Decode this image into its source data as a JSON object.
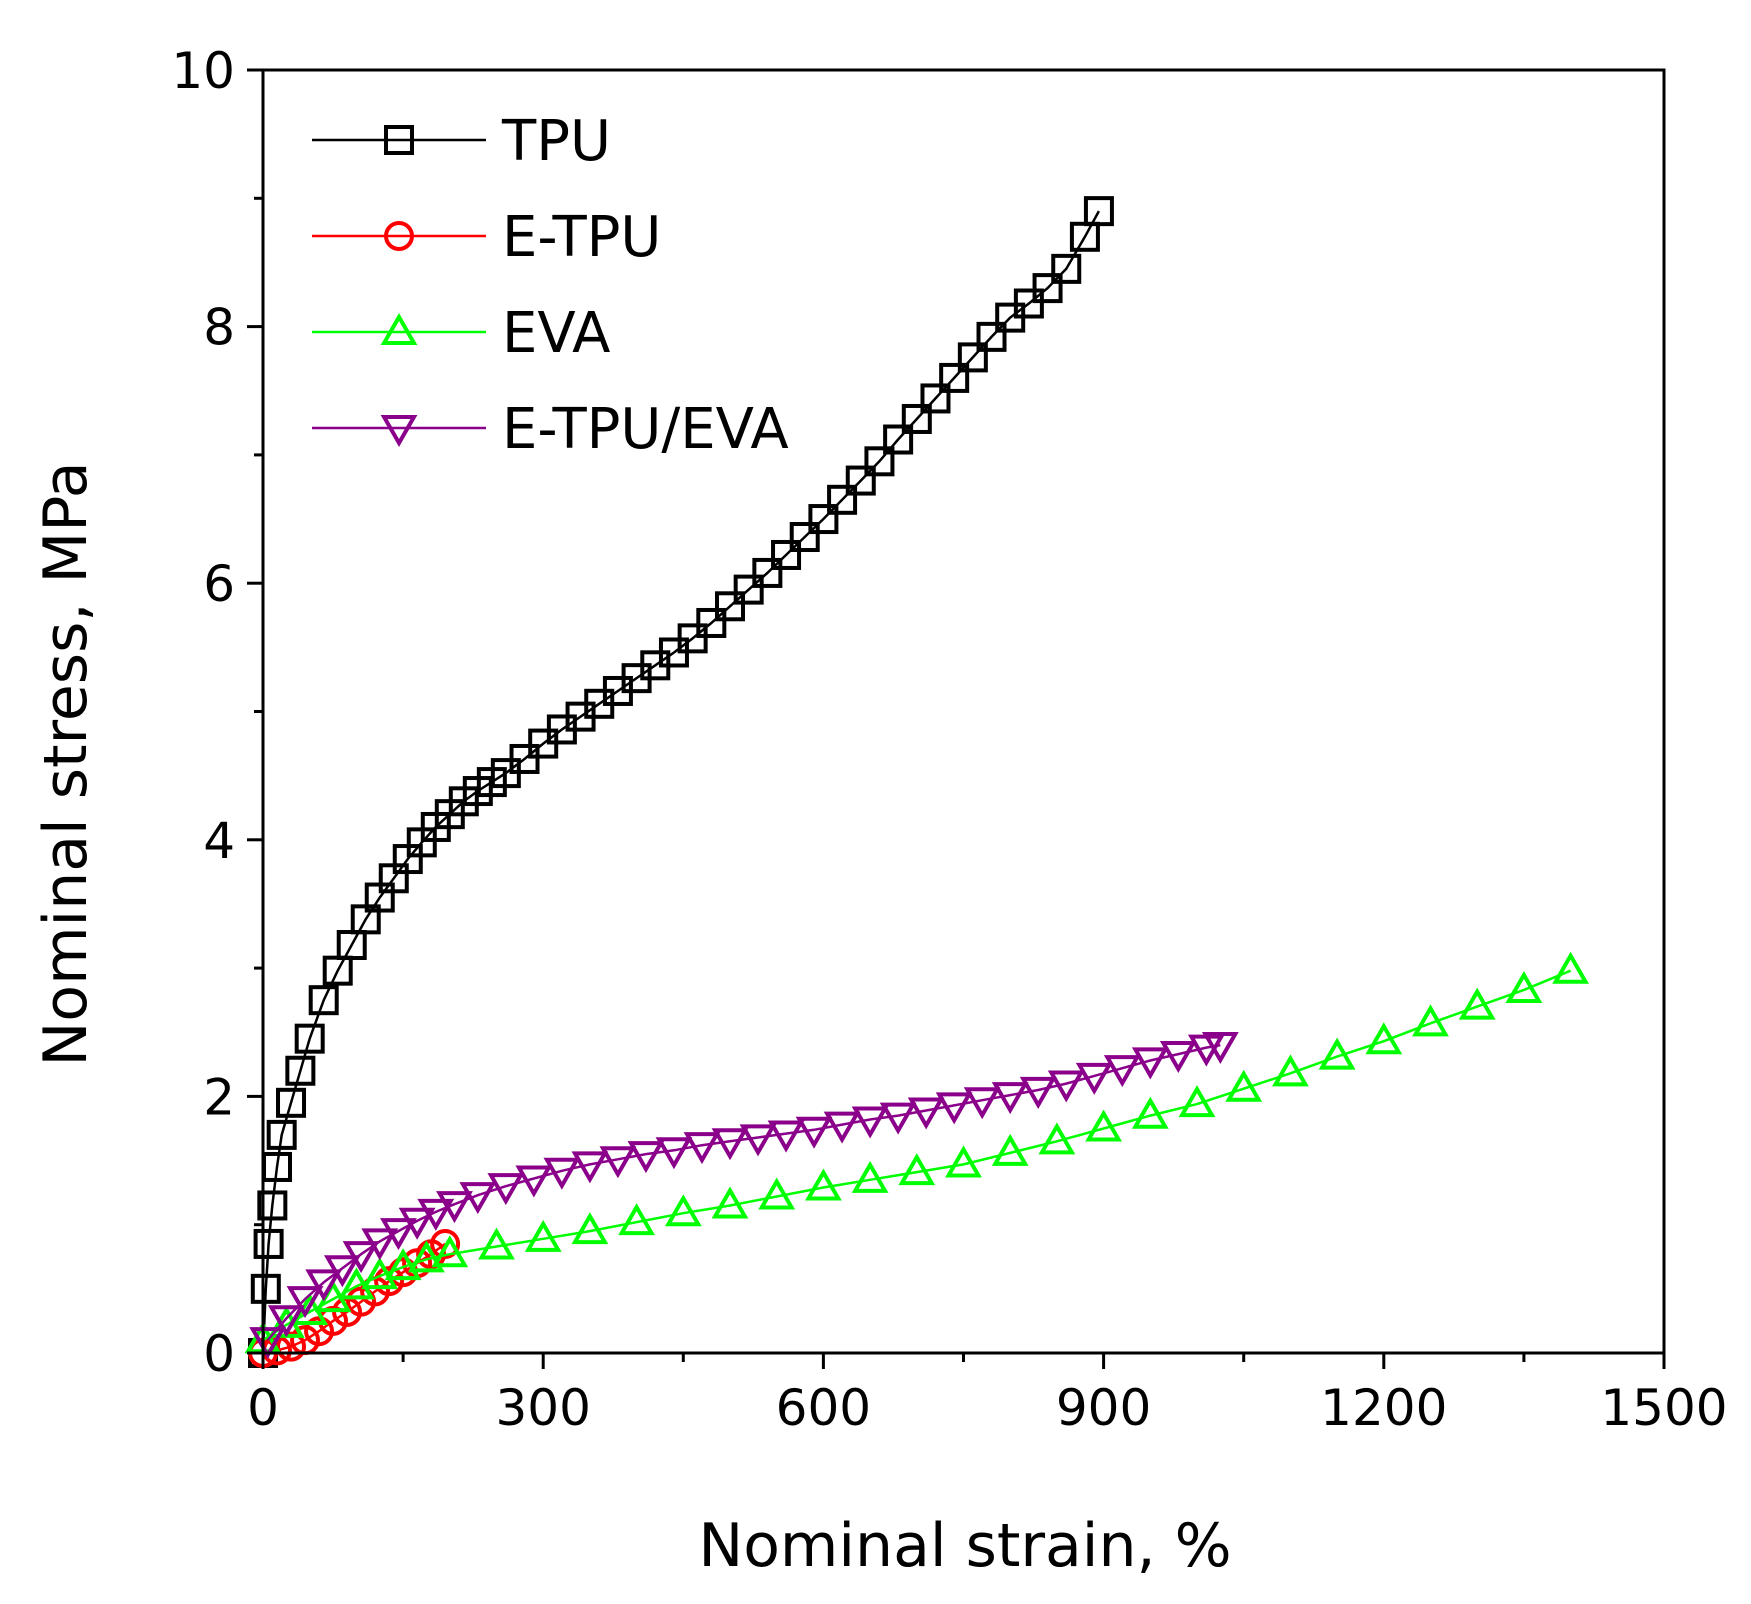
{
  "chart_data": {
    "type": "line",
    "title": "",
    "xlabel": "Nominal strain, %",
    "ylabel": "Nominal stress, MPa",
    "xlim": [
      0,
      1500
    ],
    "ylim": [
      0,
      10
    ],
    "xticks": [
      0,
      300,
      600,
      900,
      1200,
      1500
    ],
    "yticks": [
      0,
      2,
      4,
      6,
      8,
      10
    ],
    "xtick_labels": [
      "0",
      "300",
      "600",
      "900",
      "1200",
      "1500"
    ],
    "ytick_labels": [
      "0",
      "2",
      "4",
      "6",
      "8",
      "10"
    ],
    "grid": false,
    "legend_position": "top-left",
    "series": [
      {
        "name": "TPU",
        "color": "#000000",
        "marker": "square",
        "x": [
          0,
          3,
          6,
          10,
          15,
          20,
          30,
          40,
          50,
          65,
          80,
          95,
          110,
          125,
          140,
          155,
          170,
          185,
          200,
          215,
          230,
          245,
          260,
          280,
          300,
          320,
          340,
          360,
          380,
          400,
          420,
          440,
          460,
          480,
          500,
          520,
          540,
          560,
          580,
          600,
          620,
          640,
          660,
          680,
          700,
          720,
          740,
          760,
          780,
          800,
          820,
          840,
          860,
          880,
          895
        ],
        "y": [
          0,
          0.5,
          0.85,
          1.15,
          1.45,
          1.7,
          1.95,
          2.2,
          2.45,
          2.75,
          2.98,
          3.18,
          3.38,
          3.55,
          3.7,
          3.85,
          3.98,
          4.1,
          4.2,
          4.3,
          4.38,
          4.45,
          4.52,
          4.63,
          4.75,
          4.86,
          4.96,
          5.06,
          5.16,
          5.26,
          5.36,
          5.46,
          5.57,
          5.69,
          5.82,
          5.95,
          6.08,
          6.22,
          6.36,
          6.5,
          6.65,
          6.8,
          6.95,
          7.12,
          7.28,
          7.44,
          7.6,
          7.76,
          7.92,
          8.07,
          8.18,
          8.3,
          8.45,
          8.7,
          8.9
        ]
      },
      {
        "name": "E-TPU",
        "color": "#ff0000",
        "marker": "circle",
        "x": [
          0,
          15,
          30,
          45,
          60,
          75,
          90,
          105,
          120,
          135,
          150,
          165,
          180,
          195
        ],
        "y": [
          0,
          0.02,
          0.05,
          0.1,
          0.17,
          0.25,
          0.32,
          0.4,
          0.48,
          0.56,
          0.63,
          0.7,
          0.77,
          0.85
        ]
      },
      {
        "name": "EVA",
        "color": "#00ff00",
        "marker": "triangle-up",
        "x": [
          0,
          25,
          50,
          75,
          100,
          125,
          150,
          175,
          200,
          250,
          300,
          350,
          400,
          450,
          500,
          550,
          600,
          650,
          700,
          750,
          800,
          850,
          900,
          950,
          1000,
          1050,
          1100,
          1150,
          1200,
          1250,
          1300,
          1350,
          1400
        ],
        "y": [
          0.1,
          0.22,
          0.32,
          0.42,
          0.52,
          0.6,
          0.67,
          0.73,
          0.77,
          0.83,
          0.89,
          0.95,
          1.02,
          1.09,
          1.15,
          1.22,
          1.29,
          1.35,
          1.41,
          1.47,
          1.56,
          1.65,
          1.75,
          1.85,
          1.94,
          2.06,
          2.18,
          2.31,
          2.43,
          2.57,
          2.7,
          2.83,
          2.98
        ]
      },
      {
        "name": "E-TPU/EVA",
        "color": "#8b008b",
        "marker": "triangle-down",
        "x": [
          5,
          25,
          45,
          65,
          85,
          105,
          125,
          145,
          165,
          185,
          205,
          230,
          260,
          290,
          320,
          350,
          380,
          410,
          440,
          470,
          500,
          530,
          560,
          590,
          620,
          650,
          680,
          710,
          740,
          770,
          800,
          830,
          860,
          890,
          920,
          950,
          980,
          1010,
          1025
        ],
        "y": [
          0.1,
          0.27,
          0.42,
          0.55,
          0.66,
          0.77,
          0.87,
          0.95,
          1.03,
          1.1,
          1.16,
          1.23,
          1.3,
          1.36,
          1.42,
          1.47,
          1.51,
          1.55,
          1.58,
          1.62,
          1.65,
          1.68,
          1.71,
          1.74,
          1.78,
          1.82,
          1.85,
          1.89,
          1.93,
          1.97,
          2.01,
          2.05,
          2.1,
          2.16,
          2.22,
          2.28,
          2.33,
          2.38,
          2.4
        ]
      }
    ]
  }
}
